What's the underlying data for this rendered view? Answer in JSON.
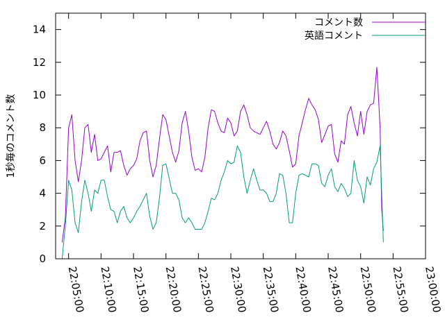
{
  "chart_data": {
    "type": "line",
    "title": "",
    "xlabel": "",
    "ylabel": "1秒毎のコメント数",
    "ylim": [
      0,
      15
    ],
    "yticks": [
      0,
      2,
      4,
      6,
      8,
      10,
      12,
      14
    ],
    "xlim": [
      "22:03:00",
      "23:00:00"
    ],
    "xticks": [
      "22:05:00",
      "22:10:00",
      "22:15:00",
      "22:20:00",
      "22:25:00",
      "22:30:00",
      "22:35:00",
      "22:40:00",
      "22:45:00",
      "22:50:00",
      "22:55:00",
      "23:00:00"
    ],
    "grid": false,
    "legend_position": "top-right",
    "series": [
      {
        "name": "コメント数",
        "color": "#9400d3",
        "points": [
          [
            "22:04:00",
            1.0
          ],
          [
            "22:04:30",
            2.5
          ],
          [
            "22:05:00",
            8.0
          ],
          [
            "22:05:30",
            8.8
          ],
          [
            "22:06:00",
            6.0
          ],
          [
            "22:06:30",
            4.7
          ],
          [
            "22:07:00",
            6.0
          ],
          [
            "22:07:30",
            8.0
          ],
          [
            "22:08:00",
            8.2
          ],
          [
            "22:08:30",
            6.5
          ],
          [
            "22:09:00",
            7.6
          ],
          [
            "22:09:30",
            6.0
          ],
          [
            "22:10:00",
            6.1
          ],
          [
            "22:10:30",
            6.5
          ],
          [
            "22:11:00",
            6.9
          ],
          [
            "22:11:30",
            5.3
          ],
          [
            "22:12:00",
            6.5
          ],
          [
            "22:12:30",
            6.5
          ],
          [
            "22:13:00",
            6.6
          ],
          [
            "22:13:30",
            5.7
          ],
          [
            "22:14:00",
            5.1
          ],
          [
            "22:14:30",
            5.5
          ],
          [
            "22:15:00",
            5.7
          ],
          [
            "22:15:30",
            6.1
          ],
          [
            "22:16:00",
            7.2
          ],
          [
            "22:16:30",
            7.7
          ],
          [
            "22:17:00",
            7.8
          ],
          [
            "22:17:30",
            6.0
          ],
          [
            "22:18:00",
            5.0
          ],
          [
            "22:18:30",
            5.7
          ],
          [
            "22:19:00",
            7.3
          ],
          [
            "22:19:30",
            8.8
          ],
          [
            "22:20:00",
            8.5
          ],
          [
            "22:20:30",
            7.5
          ],
          [
            "22:21:00",
            6.5
          ],
          [
            "22:21:30",
            5.9
          ],
          [
            "22:22:00",
            6.6
          ],
          [
            "22:22:30",
            8.3
          ],
          [
            "22:23:00",
            9.0
          ],
          [
            "22:23:30",
            7.8
          ],
          [
            "22:24:00",
            6.2
          ],
          [
            "22:24:30",
            5.4
          ],
          [
            "22:25:00",
            5.5
          ],
          [
            "22:25:30",
            5.3
          ],
          [
            "22:26:00",
            6.2
          ],
          [
            "22:26:30",
            8.0
          ],
          [
            "22:27:00",
            9.1
          ],
          [
            "22:27:30",
            9.0
          ],
          [
            "22:28:00",
            8.3
          ],
          [
            "22:28:30",
            7.8
          ],
          [
            "22:29:00",
            7.7
          ],
          [
            "22:29:30",
            8.6
          ],
          [
            "22:30:00",
            8.3
          ],
          [
            "22:30:30",
            7.5
          ],
          [
            "22:31:00",
            7.8
          ],
          [
            "22:31:30",
            9.0
          ],
          [
            "22:32:00",
            9.4
          ],
          [
            "22:32:30",
            8.8
          ],
          [
            "22:33:00",
            8.0
          ],
          [
            "22:33:30",
            7.8
          ],
          [
            "22:34:00",
            7.7
          ],
          [
            "22:34:30",
            7.6
          ],
          [
            "22:35:00",
            8.0
          ],
          [
            "22:35:30",
            8.4
          ],
          [
            "22:36:00",
            7.8
          ],
          [
            "22:36:30",
            7.0
          ],
          [
            "22:37:00",
            6.7
          ],
          [
            "22:37:30",
            7.1
          ],
          [
            "22:38:00",
            7.8
          ],
          [
            "22:38:30",
            7.5
          ],
          [
            "22:39:00",
            6.6
          ],
          [
            "22:39:30",
            5.6
          ],
          [
            "22:40:00",
            5.8
          ],
          [
            "22:40:30",
            7.5
          ],
          [
            "22:41:00",
            8.3
          ],
          [
            "22:41:30",
            9.1
          ],
          [
            "22:42:00",
            9.8
          ],
          [
            "22:42:30",
            9.4
          ],
          [
            "22:43:00",
            9.1
          ],
          [
            "22:43:30",
            8.5
          ],
          [
            "22:44:00",
            7.1
          ],
          [
            "22:44:30",
            7.6
          ],
          [
            "22:45:00",
            8.1
          ],
          [
            "22:45:30",
            8.2
          ],
          [
            "22:46:00",
            6.4
          ],
          [
            "22:46:30",
            5.9
          ],
          [
            "22:47:00",
            7.2
          ],
          [
            "22:47:30",
            7.0
          ],
          [
            "22:48:00",
            8.8
          ],
          [
            "22:48:30",
            9.3
          ],
          [
            "22:49:00",
            8.3
          ],
          [
            "22:49:30",
            7.5
          ],
          [
            "22:50:00",
            9.0
          ],
          [
            "22:50:30",
            7.6
          ],
          [
            "22:51:00",
            9.0
          ],
          [
            "22:51:30",
            9.4
          ],
          [
            "22:52:00",
            9.5
          ],
          [
            "22:52:30",
            11.7
          ],
          [
            "22:53:00",
            8.0
          ],
          [
            "22:53:15",
            3.0
          ],
          [
            "22:53:30",
            1.7
          ]
        ]
      },
      {
        "name": "英語コメント",
        "color": "#009e73",
        "points": [
          [
            "22:04:00",
            0.0
          ],
          [
            "22:04:30",
            2.0
          ],
          [
            "22:05:00",
            4.8
          ],
          [
            "22:05:30",
            4.2
          ],
          [
            "22:06:00",
            2.2
          ],
          [
            "22:06:30",
            1.6
          ],
          [
            "22:07:00",
            3.5
          ],
          [
            "22:07:30",
            4.8
          ],
          [
            "22:08:00",
            4.0
          ],
          [
            "22:08:30",
            2.9
          ],
          [
            "22:09:00",
            4.2
          ],
          [
            "22:09:30",
            4.0
          ],
          [
            "22:10:00",
            4.8
          ],
          [
            "22:10:30",
            4.8
          ],
          [
            "22:11:00",
            3.8
          ],
          [
            "22:11:30",
            3.0
          ],
          [
            "22:12:00",
            2.9
          ],
          [
            "22:12:30",
            2.2
          ],
          [
            "22:13:00",
            2.9
          ],
          [
            "22:13:30",
            3.2
          ],
          [
            "22:14:00",
            2.5
          ],
          [
            "22:14:30",
            2.2
          ],
          [
            "22:15:00",
            2.5
          ],
          [
            "22:15:30",
            2.9
          ],
          [
            "22:16:00",
            3.2
          ],
          [
            "22:16:30",
            3.6
          ],
          [
            "22:17:00",
            4.0
          ],
          [
            "22:17:30",
            2.6
          ],
          [
            "22:18:00",
            1.8
          ],
          [
            "22:18:30",
            2.2
          ],
          [
            "22:19:00",
            3.7
          ],
          [
            "22:19:30",
            5.7
          ],
          [
            "22:20:00",
            5.8
          ],
          [
            "22:20:30",
            4.9
          ],
          [
            "22:21:00",
            4.0
          ],
          [
            "22:21:30",
            4.0
          ],
          [
            "22:22:00",
            3.6
          ],
          [
            "22:22:30",
            2.5
          ],
          [
            "22:23:00",
            2.2
          ],
          [
            "22:23:30",
            2.5
          ],
          [
            "22:24:00",
            2.2
          ],
          [
            "22:24:30",
            1.8
          ],
          [
            "22:25:00",
            1.8
          ],
          [
            "22:25:30",
            1.8
          ],
          [
            "22:26:00",
            2.2
          ],
          [
            "22:26:30",
            2.9
          ],
          [
            "22:27:00",
            3.7
          ],
          [
            "22:27:30",
            3.6
          ],
          [
            "22:28:00",
            4.0
          ],
          [
            "22:28:30",
            4.8
          ],
          [
            "22:29:00",
            5.3
          ],
          [
            "22:29:30",
            6.0
          ],
          [
            "22:30:00",
            5.8
          ],
          [
            "22:30:30",
            5.9
          ],
          [
            "22:31:00",
            6.9
          ],
          [
            "22:31:30",
            6.5
          ],
          [
            "22:32:00",
            5.0
          ],
          [
            "22:32:30",
            4.0
          ],
          [
            "22:33:00",
            4.8
          ],
          [
            "22:33:30",
            5.5
          ],
          [
            "22:34:00",
            4.8
          ],
          [
            "22:34:30",
            4.2
          ],
          [
            "22:35:00",
            4.2
          ],
          [
            "22:35:30",
            4.0
          ],
          [
            "22:36:00",
            3.5
          ],
          [
            "22:36:30",
            3.5
          ],
          [
            "22:37:00",
            4.0
          ],
          [
            "22:37:30",
            5.2
          ],
          [
            "22:38:00",
            5.1
          ],
          [
            "22:38:30",
            4.0
          ],
          [
            "22:39:00",
            2.2
          ],
          [
            "22:39:30",
            2.2
          ],
          [
            "22:40:00",
            4.0
          ],
          [
            "22:40:30",
            5.1
          ],
          [
            "22:41:00",
            5.2
          ],
          [
            "22:41:30",
            5.1
          ],
          [
            "22:42:00",
            5.0
          ],
          [
            "22:42:30",
            5.8
          ],
          [
            "22:43:00",
            5.8
          ],
          [
            "22:43:30",
            5.7
          ],
          [
            "22:44:00",
            4.6
          ],
          [
            "22:44:30",
            4.4
          ],
          [
            "22:45:00",
            5.1
          ],
          [
            "22:45:30",
            5.5
          ],
          [
            "22:46:00",
            4.4
          ],
          [
            "22:46:30",
            4.1
          ],
          [
            "22:47:00",
            4.6
          ],
          [
            "22:47:30",
            4.3
          ],
          [
            "22:48:00",
            3.8
          ],
          [
            "22:48:30",
            4.0
          ],
          [
            "22:49:00",
            6.0
          ],
          [
            "22:49:30",
            4.8
          ],
          [
            "22:50:00",
            4.4
          ],
          [
            "22:50:30",
            3.4
          ],
          [
            "22:51:00",
            5.0
          ],
          [
            "22:51:30",
            4.5
          ],
          [
            "22:52:00",
            5.5
          ],
          [
            "22:52:30",
            5.9
          ],
          [
            "22:53:00",
            6.9
          ],
          [
            "22:53:15",
            4.0
          ],
          [
            "22:53:30",
            1.0
          ]
        ]
      }
    ]
  }
}
